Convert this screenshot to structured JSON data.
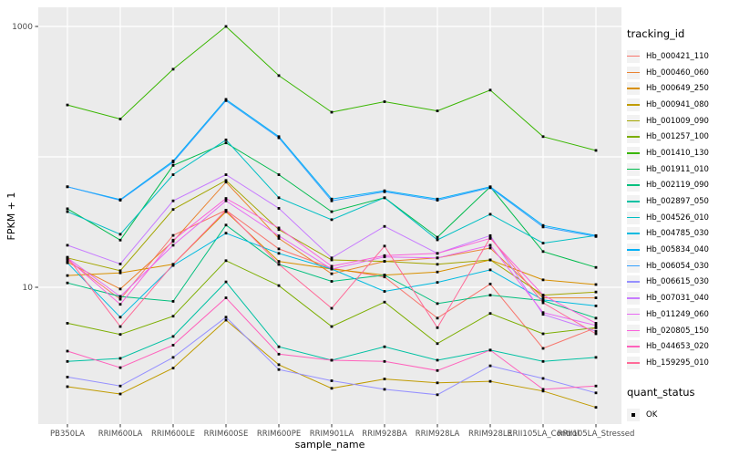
{
  "figure": {
    "background": "#FFFFFF",
    "panel_background": "#EBEBEB",
    "gridline_color": "#FFFFFF",
    "tick_color": "#333333",
    "tick_label_color": "#4D4D4D",
    "title_color": "#000000"
  },
  "chart_data": {
    "type": "line",
    "title": "",
    "xlabel": "sample_name",
    "ylabel": "FPKM + 1",
    "y_scale": "log10",
    "y_tick_labels": [
      "1000",
      "10"
    ],
    "y_tick_values": [
      1000,
      10
    ],
    "y_gridlines": [
      10,
      100,
      1000
    ],
    "ylim": [
      0.88,
      1400
    ],
    "grid": true,
    "legend_position": "right",
    "legend_title": "tracking_id",
    "marker": "black-square",
    "categories": [
      "PB350LA",
      "RRIM600LA",
      "RRIM600LE",
      "RRIM600SE",
      "RRIM600PE",
      "RRIM901LA",
      "RRIM928BA",
      "RRIM928LA",
      "RRIM928LE",
      "RRII105LA_Control",
      "RRII105LA_Stressed"
    ],
    "series": [
      {
        "name": "Hb_000421_110",
        "color": "#F8766D",
        "values": [
          16.2,
          8.1,
          25,
          39,
          19.7,
          14.0,
          12.0,
          5.8,
          10.6,
          3.4,
          4.9
        ]
      },
      {
        "name": "Hb_000460_060",
        "color": "#EA8331",
        "values": [
          15.6,
          9.7,
          22.5,
          64,
          23.7,
          12.7,
          15.8,
          16.8,
          20.0,
          8.3,
          8.3
        ]
      },
      {
        "name": "Hb_000649_250",
        "color": "#D89000",
        "values": [
          12.3,
          12.9,
          15.0,
          38,
          15.8,
          13.8,
          12.4,
          13.1,
          16.2,
          11.4,
          10.5
        ]
      },
      {
        "name": "Hb_000941_080",
        "color": "#C09B00",
        "values": [
          1.73,
          1.52,
          2.4,
          5.6,
          2.55,
          1.68,
          1.98,
          1.85,
          1.9,
          1.6,
          1.2
        ]
      },
      {
        "name": "Hb_001009_090",
        "color": "#A3A500",
        "values": [
          16.8,
          13.4,
          39.5,
          66,
          27.7,
          16.2,
          15.8,
          15.0,
          16.2,
          8.7,
          9.2
        ]
      },
      {
        "name": "Hb_001257_100",
        "color": "#7CAE00",
        "values": [
          5.3,
          4.35,
          6.0,
          16,
          10.3,
          5.0,
          7.7,
          3.7,
          6.3,
          4.4,
          4.9
        ]
      },
      {
        "name": "Hb_001410_130",
        "color": "#39B600",
        "values": [
          250,
          195,
          470,
          1000,
          420,
          220,
          265,
          225,
          325,
          143,
          112
        ]
      },
      {
        "name": "Hb_001911_010",
        "color": "#00BB4E",
        "values": [
          40,
          23,
          86,
          128,
          73,
          38,
          48.6,
          24.2,
          58.9,
          18.8,
          14.2
        ]
      },
      {
        "name": "Hb_002119_090",
        "color": "#00BF7D",
        "values": [
          10.8,
          8.5,
          7.8,
          30,
          15.0,
          11.1,
          12.4,
          7.5,
          8.7,
          7.9,
          5.8
        ]
      },
      {
        "name": "Hb_002897_050",
        "color": "#00C1A3",
        "values": [
          2.7,
          2.85,
          4.2,
          11,
          3.5,
          2.76,
          3.5,
          2.76,
          3.3,
          2.7,
          2.9
        ]
      },
      {
        "name": "Hb_004526_010",
        "color": "#00BFC4",
        "values": [
          38,
          25.5,
          73,
          135,
          48.6,
          33,
          48.6,
          23.1,
          36.3,
          21.8,
          24.9
        ]
      },
      {
        "name": "Hb_004785_030",
        "color": "#00BAE0",
        "values": [
          15.4,
          5.9,
          14.7,
          26,
          18.2,
          13.8,
          9.3,
          10.9,
          13.6,
          8.0,
          7.2
        ]
      },
      {
        "name": "Hb_005834_040",
        "color": "#00B0F6",
        "values": [
          59,
          47,
          93,
          276,
          143,
          47.5,
          55,
          47.5,
          59,
          29.8,
          24.9
        ]
      },
      {
        "name": "Hb_006054_030",
        "color": "#35A2FF",
        "values": [
          59,
          46.5,
          91,
          270,
          140,
          46,
          54,
          46.5,
          58,
          29,
          24.5
        ]
      },
      {
        "name": "Hb_006615_030",
        "color": "#9590FF",
        "values": [
          2.05,
          1.75,
          2.9,
          5.9,
          2.34,
          1.92,
          1.65,
          1.5,
          2.5,
          2.0,
          1.55
        ]
      },
      {
        "name": "Hb_007031_040",
        "color": "#C77CFF",
        "values": [
          21,
          15.1,
          46,
          73,
          40.3,
          16.8,
          29.3,
          18.2,
          24.9,
          6.2,
          4.6
        ]
      },
      {
        "name": "Hb_011249_060",
        "color": "#E76BF3",
        "values": [
          16.8,
          8.5,
          21,
          46,
          24.8,
          13.8,
          17.1,
          16.8,
          21,
          6.4,
          5.1
        ]
      },
      {
        "name": "Hb_020805_150",
        "color": "#FA62DB",
        "values": [
          16.5,
          7.4,
          23,
          48,
          28.5,
          14.5,
          17.5,
          18.2,
          23.7,
          8.7,
          5.3
        ]
      },
      {
        "name": "Hb_044653_020",
        "color": "#FF62BC",
        "values": [
          3.24,
          2.42,
          3.6,
          8.3,
          3.07,
          2.76,
          2.7,
          2.3,
          3.3,
          1.65,
          1.75
        ]
      },
      {
        "name": "Hb_159295_010",
        "color": "#FF6A98",
        "values": [
          17.0,
          5.0,
          15.0,
          39,
          15.0,
          6.9,
          20.7,
          4.9,
          24,
          7.6,
          4.4
        ]
      }
    ],
    "legend2": {
      "title": "quant_status",
      "items": [
        "OK"
      ]
    }
  }
}
